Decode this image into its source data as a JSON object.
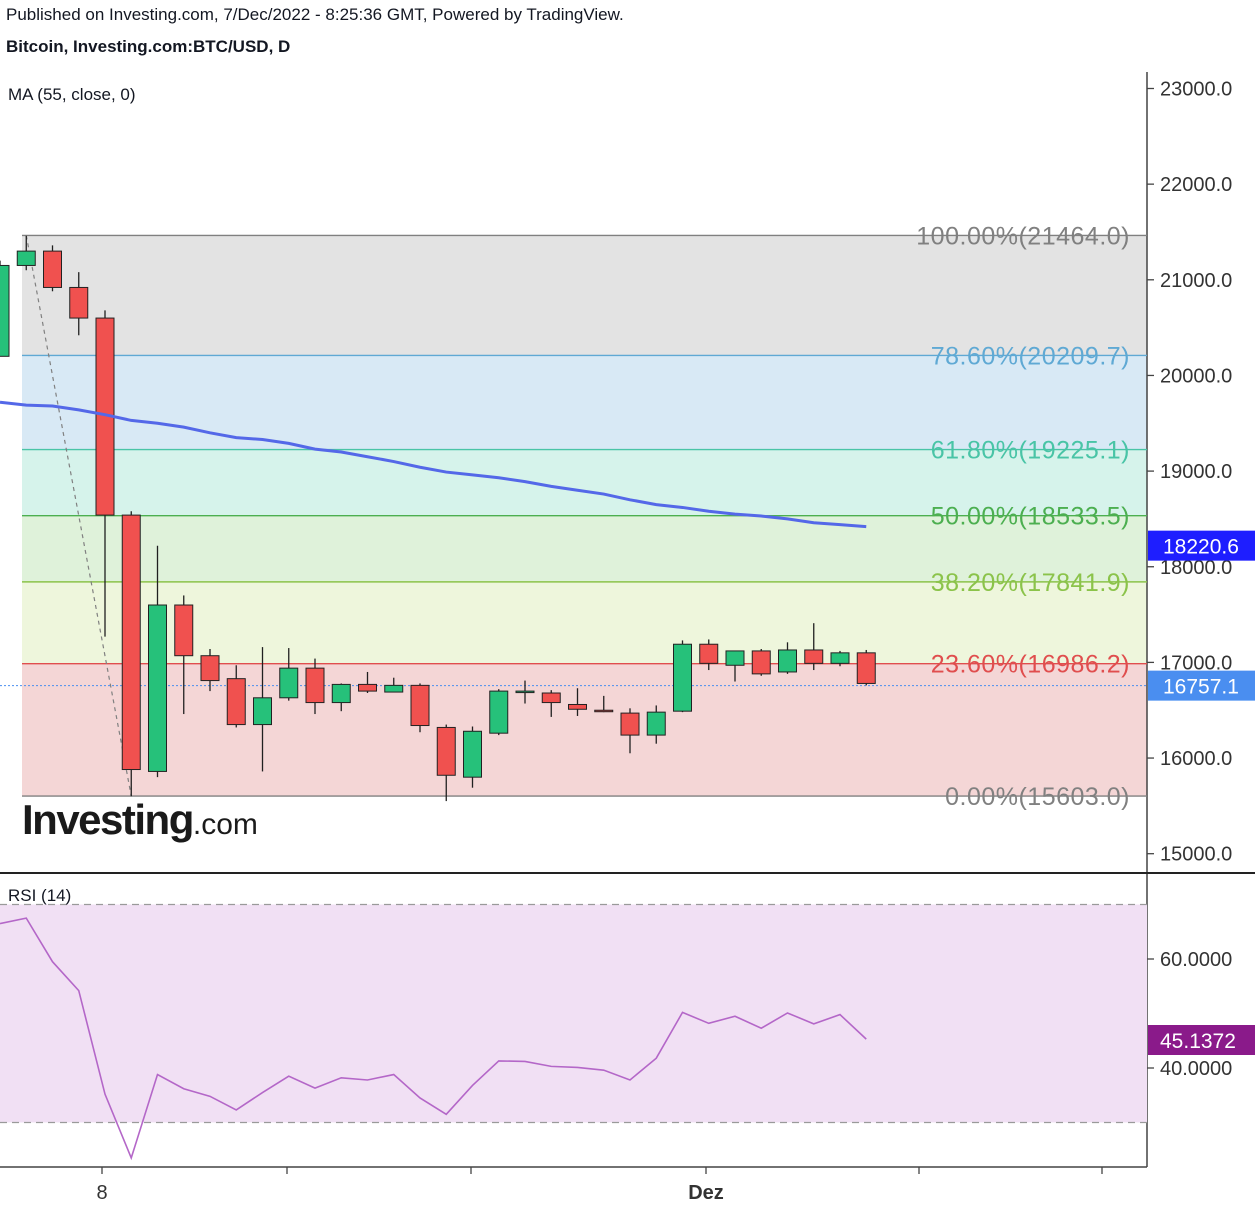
{
  "header": {
    "published": "Published on Investing.com, 7/Dec/2022 - 8:25:36 GMT, Powered by TradingView.",
    "symbol": "Bitcoin, Investing.com:BTC/USD, D"
  },
  "logo": {
    "word": "Investing",
    "suffix": ".com"
  },
  "chart_data": [
    {
      "type": "candlestick",
      "title": "Bitcoin, Investing.com:BTC/USD, D",
      "indicator_label": "MA (55, close, 0)",
      "ylim": [
        14700,
        23100
      ],
      "y_ticks": [
        "23000.0",
        "22000.0",
        "21000.0",
        "20000.0",
        "19000.0",
        "18000.0",
        "17000.0",
        "16000.0",
        "15000.0"
      ],
      "x_ticks": [
        "8",
        "Dez"
      ],
      "candles": [
        {
          "o": 20200,
          "h": 21200,
          "l": 20200,
          "c": 21150
        },
        {
          "o": 21150,
          "h": 21460,
          "l": 21100,
          "c": 21300
        },
        {
          "o": 21300,
          "h": 21360,
          "l": 20880,
          "c": 20920
        },
        {
          "o": 20920,
          "h": 21080,
          "l": 20420,
          "c": 20600
        },
        {
          "o": 20600,
          "h": 20680,
          "l": 17270,
          "c": 18540
        },
        {
          "o": 18540,
          "h": 18580,
          "l": 15600,
          "c": 15880
        },
        {
          "o": 15860,
          "h": 18220,
          "l": 15800,
          "c": 17600
        },
        {
          "o": 17600,
          "h": 17700,
          "l": 16460,
          "c": 17070
        },
        {
          "o": 17070,
          "h": 17140,
          "l": 16700,
          "c": 16810
        },
        {
          "o": 16830,
          "h": 16970,
          "l": 16320,
          "c": 16350
        },
        {
          "o": 16350,
          "h": 17160,
          "l": 15860,
          "c": 16630
        },
        {
          "o": 16630,
          "h": 17150,
          "l": 16600,
          "c": 16940
        },
        {
          "o": 16940,
          "h": 17040,
          "l": 16460,
          "c": 16580
        },
        {
          "o": 16580,
          "h": 16780,
          "l": 16490,
          "c": 16770
        },
        {
          "o": 16770,
          "h": 16900,
          "l": 16680,
          "c": 16700
        },
        {
          "o": 16690,
          "h": 16840,
          "l": 16690,
          "c": 16760
        },
        {
          "o": 16760,
          "h": 16780,
          "l": 16270,
          "c": 16340
        },
        {
          "o": 16320,
          "h": 16350,
          "l": 15550,
          "c": 15820
        },
        {
          "o": 15800,
          "h": 16330,
          "l": 15690,
          "c": 16280
        },
        {
          "o": 16260,
          "h": 16720,
          "l": 16240,
          "c": 16700
        },
        {
          "o": 16690,
          "h": 16810,
          "l": 16570,
          "c": 16700
        },
        {
          "o": 16680,
          "h": 16710,
          "l": 16430,
          "c": 16580
        },
        {
          "o": 16560,
          "h": 16730,
          "l": 16440,
          "c": 16510
        },
        {
          "o": 16500,
          "h": 16650,
          "l": 16480,
          "c": 16490
        },
        {
          "o": 16470,
          "h": 16520,
          "l": 16050,
          "c": 16240
        },
        {
          "o": 16240,
          "h": 16550,
          "l": 16150,
          "c": 16480
        },
        {
          "o": 16490,
          "h": 17230,
          "l": 16480,
          "c": 17190
        },
        {
          "o": 17190,
          "h": 17240,
          "l": 16920,
          "c": 16990
        },
        {
          "o": 16970,
          "h": 17120,
          "l": 16800,
          "c": 17120
        },
        {
          "o": 17120,
          "h": 17140,
          "l": 16860,
          "c": 16880
        },
        {
          "o": 16900,
          "h": 17210,
          "l": 16880,
          "c": 17130
        },
        {
          "o": 17130,
          "h": 17410,
          "l": 16920,
          "c": 16990
        },
        {
          "o": 16990,
          "h": 17120,
          "l": 16960,
          "c": 17100
        },
        {
          "o": 17100,
          "h": 17130,
          "l": 16760,
          "c": 16780
        }
      ],
      "ma": [
        19720,
        19690,
        19680,
        19640,
        19590,
        19530,
        19500,
        19460,
        19400,
        19350,
        19330,
        19290,
        19230,
        19200,
        19150,
        19100,
        19040,
        18990,
        18960,
        18930,
        18890,
        18840,
        18800,
        18760,
        18700,
        18650,
        18620,
        18580,
        18550,
        18530,
        18500,
        18460,
        18440,
        18420
      ],
      "fibonacci": [
        {
          "label": "100.00%(21464.0)",
          "value": 21464.0,
          "line_color": "#808080",
          "fill": "#e3e3e3"
        },
        {
          "label": "78.60%(20209.7)",
          "value": 20209.7,
          "line_color": "#5fa9d4",
          "fill": "#d8e9f5"
        },
        {
          "label": "61.80%(19225.1)",
          "value": 19225.1,
          "line_color": "#49c4a6",
          "fill": "#d6f3eb"
        },
        {
          "label": "50.00%(18533.5)",
          "value": 18533.5,
          "line_color": "#4caf50",
          "fill": "#dff2da"
        },
        {
          "label": "38.20%(17841.9)",
          "value": 17841.9,
          "line_color": "#8bc34a",
          "fill": "#eef6dc"
        },
        {
          "label": "23.60%(16986.2)",
          "value": 16986.2,
          "line_color": "#e04e4e",
          "fill": "#f4d6d6"
        },
        {
          "label": "0.00%(15603.0)",
          "value": 15603.0,
          "line_color": "#808080",
          "fill": null
        }
      ],
      "price_tags": [
        {
          "text": "18220.6",
          "value": 18220.6,
          "color": "#1e1eff"
        },
        {
          "text": "16757.1",
          "value": 16757.1,
          "color": "#4a8ef0"
        }
      ],
      "colors": {
        "up": "#26c17a",
        "down": "#f0514f",
        "ma": "#5468e8",
        "wick": "#202020"
      }
    },
    {
      "type": "line",
      "indicator_label": "RSI (14)",
      "ylim": [
        22,
        75
      ],
      "y_ticks": [
        "60.0000",
        "40.0000"
      ],
      "bands": [
        70,
        30
      ],
      "values": [
        66.5,
        67.5,
        59.5,
        54.2,
        35.2,
        23.5,
        38.8,
        36.2,
        34.8,
        32.3,
        35.5,
        38.5,
        36.3,
        38.2,
        37.8,
        38.8,
        34.5,
        31.5,
        36.8,
        41.3,
        41.2,
        40.3,
        40.1,
        39.6,
        37.8,
        41.8,
        50.2,
        48.2,
        49.5,
        47.3,
        50.1,
        48.1,
        49.8,
        45.3
      ],
      "tag": {
        "text": "45.1372",
        "value": 45.1372,
        "color": "#8a1a8a"
      },
      "colors": {
        "line": "#b467c8",
        "band_fill": "#f1e0f4",
        "band_line": "#9a9a9a"
      }
    }
  ]
}
